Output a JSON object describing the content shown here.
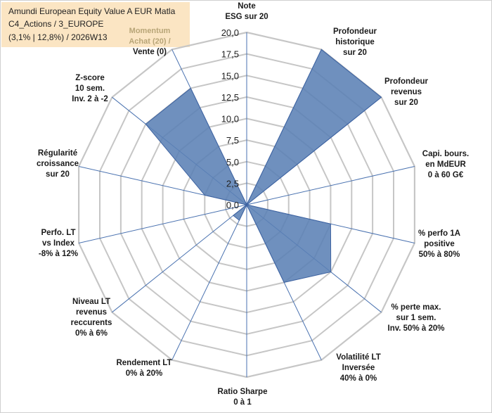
{
  "info": {
    "line1": "Amundi European Equity Value A EUR Matla",
    "line2": "C4_Actions / 3_EUROPE",
    "line3": "(3,1% | 12,8%) / 2026W13"
  },
  "colors": {
    "fill": "#5b81b5",
    "stroke": "#3e63a1",
    "grid": "#c6c6c6",
    "spoke": "#4a72b0",
    "info_bg": "#fbe5c3"
  },
  "chart_data": {
    "type": "radar",
    "rmax": 20,
    "ticks": [
      "0,0",
      "2,5",
      "5,0",
      "7,5",
      "10,0",
      "12,5",
      "15,0",
      "17,5",
      "20,0"
    ],
    "axes": [
      {
        "label": [
          "Note",
          "ESG sur 20"
        ],
        "value": 0
      },
      {
        "label": [
          "Profondeur",
          "historique",
          "sur 20"
        ],
        "value": 20
      },
      {
        "label": [
          "Profondeur",
          "revenus",
          "sur 20"
        ],
        "value": 20
      },
      {
        "label": [
          "Capi. bours.",
          "en MdEUR",
          "0 à 60 G€"
        ],
        "value": 0
      },
      {
        "label": [
          "% perfo 1A",
          "positive",
          "50% à 80%"
        ],
        "value": 10
      },
      {
        "label": [
          "% perte max.",
          "sur 1 sem.",
          "Inv. 50% à 20%"
        ],
        "value": 12.5
      },
      {
        "label": [
          "Volatilité LT",
          "Inversée",
          "40% à 0%"
        ],
        "value": 10
      },
      {
        "label": [
          "Ratio Sharpe",
          "0 à 1"
        ],
        "value": 0
      },
      {
        "label": [
          "Rendement LT",
          "0% à 20%"
        ],
        "value": 2
      },
      {
        "label": [
          "Niveau LT",
          "revenus",
          "reccurents",
          "0% à 6%"
        ],
        "value": 2
      },
      {
        "label": [
          "Perfo. LT",
          "vs Index",
          "-8% à 12%"
        ],
        "value": 0
      },
      {
        "label": [
          "Régularité",
          "croissance",
          "sur 20"
        ],
        "value": 5
      },
      {
        "label": [
          "Z-score",
          "10 sem.",
          "Inv. 2 à -2"
        ],
        "value": 15
      },
      {
        "label": [
          "Momentum",
          "Achat (20) /",
          "Vente (0)"
        ],
        "value": 15
      }
    ]
  }
}
